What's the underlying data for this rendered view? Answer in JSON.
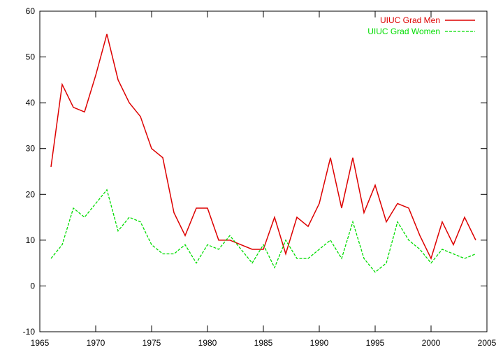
{
  "chart_data": {
    "type": "line",
    "title": "",
    "xlabel": "",
    "ylabel": "",
    "xlim": [
      1965,
      2005
    ],
    "ylim": [
      -10,
      60
    ],
    "x_ticks": [
      1965,
      1970,
      1975,
      1980,
      1985,
      1990,
      1995,
      2000,
      2005
    ],
    "y_ticks": [
      -10,
      0,
      10,
      20,
      30,
      40,
      50,
      60
    ],
    "grid": false,
    "legend_position": "top-right",
    "x": [
      1966,
      1967,
      1968,
      1969,
      1970,
      1971,
      1972,
      1973,
      1974,
      1975,
      1976,
      1977,
      1978,
      1979,
      1980,
      1981,
      1982,
      1983,
      1984,
      1985,
      1986,
      1987,
      1988,
      1989,
      1990,
      1991,
      1992,
      1993,
      1994,
      1995,
      1996,
      1997,
      1998,
      1999,
      2000,
      2001,
      2002,
      2003,
      2004
    ],
    "series": [
      {
        "name": "UIUC Grad Men",
        "color": "#dd0000",
        "dash": "solid",
        "values": [
          26,
          44,
          39,
          38,
          46,
          55,
          45,
          40,
          37,
          30,
          28,
          16,
          11,
          17,
          17,
          10,
          10,
          9,
          8,
          8,
          15,
          7,
          15,
          13,
          18,
          28,
          17,
          28,
          16,
          22,
          14,
          18,
          17,
          11,
          6,
          14,
          9,
          15,
          10
        ]
      },
      {
        "name": "UIUC Grad Women",
        "color": "#00dd00",
        "dash": "dashed",
        "values": [
          6,
          9,
          17,
          15,
          18,
          21,
          12,
          15,
          14,
          9,
          7,
          7,
          9,
          5,
          9,
          8,
          11,
          8,
          5,
          9,
          4,
          10,
          6,
          6,
          8,
          10,
          6,
          14,
          6,
          3,
          5,
          14,
          10,
          8,
          5,
          8,
          7,
          6,
          7
        ]
      }
    ]
  }
}
